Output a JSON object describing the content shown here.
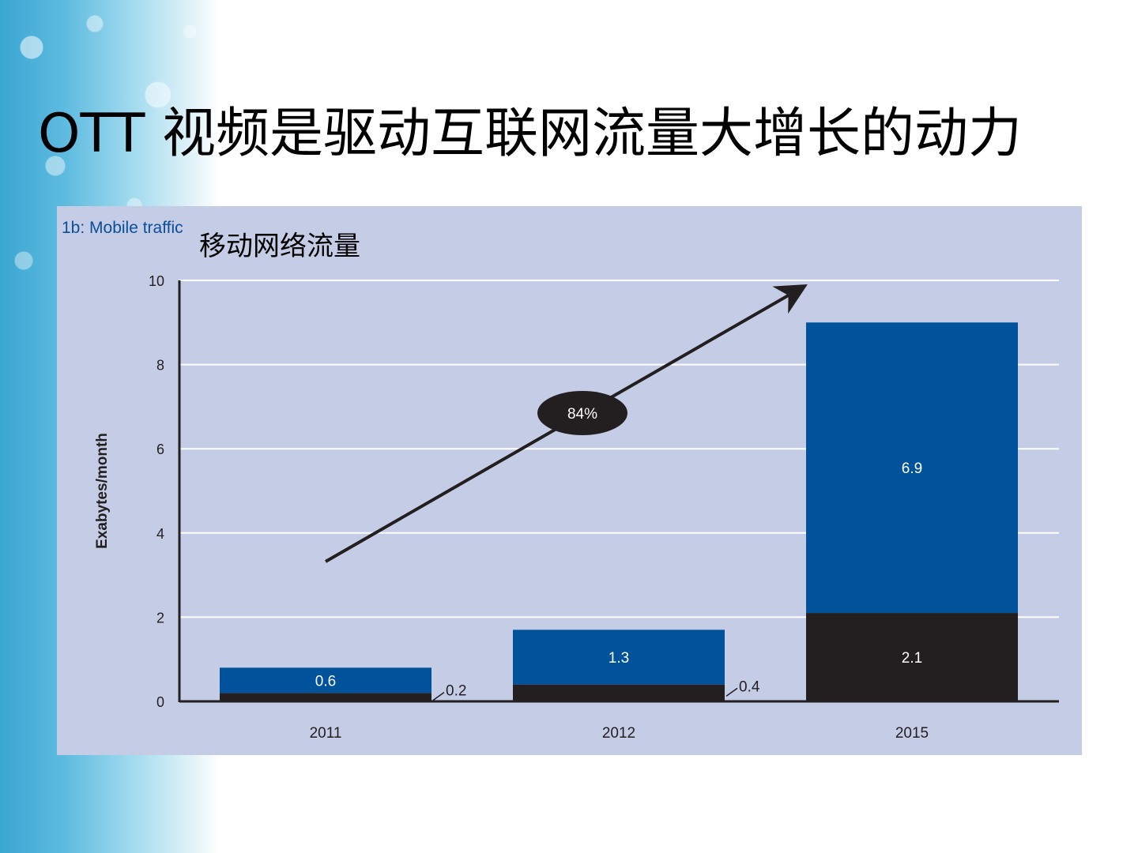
{
  "slide": {
    "title": "OTT 视频是驱动互联网流量大增长的动力",
    "subtitle": "移动网络流量"
  },
  "colors": {
    "panel_bg": "#c5cce6",
    "series_top": "#00529b",
    "series_bottom": "#231f20",
    "title_blue": "#0a4f9a",
    "gridline": "#ffffff"
  },
  "chart_data": {
    "type": "bar",
    "stacked": true,
    "title": "1b: Mobile traffic",
    "ylabel": "Exabytes/month",
    "xlabel": "",
    "ylim": [
      0,
      10
    ],
    "yticks": [
      0,
      2,
      4,
      6,
      8,
      10
    ],
    "grid": true,
    "categories": [
      "2011",
      "2012",
      "2015"
    ],
    "series": [
      {
        "values": [
          0.2,
          0.4,
          2.1
        ]
      },
      {
        "values": [
          0.6,
          1.3,
          6.9
        ]
      }
    ],
    "annotation": {
      "text": "84%"
    }
  }
}
